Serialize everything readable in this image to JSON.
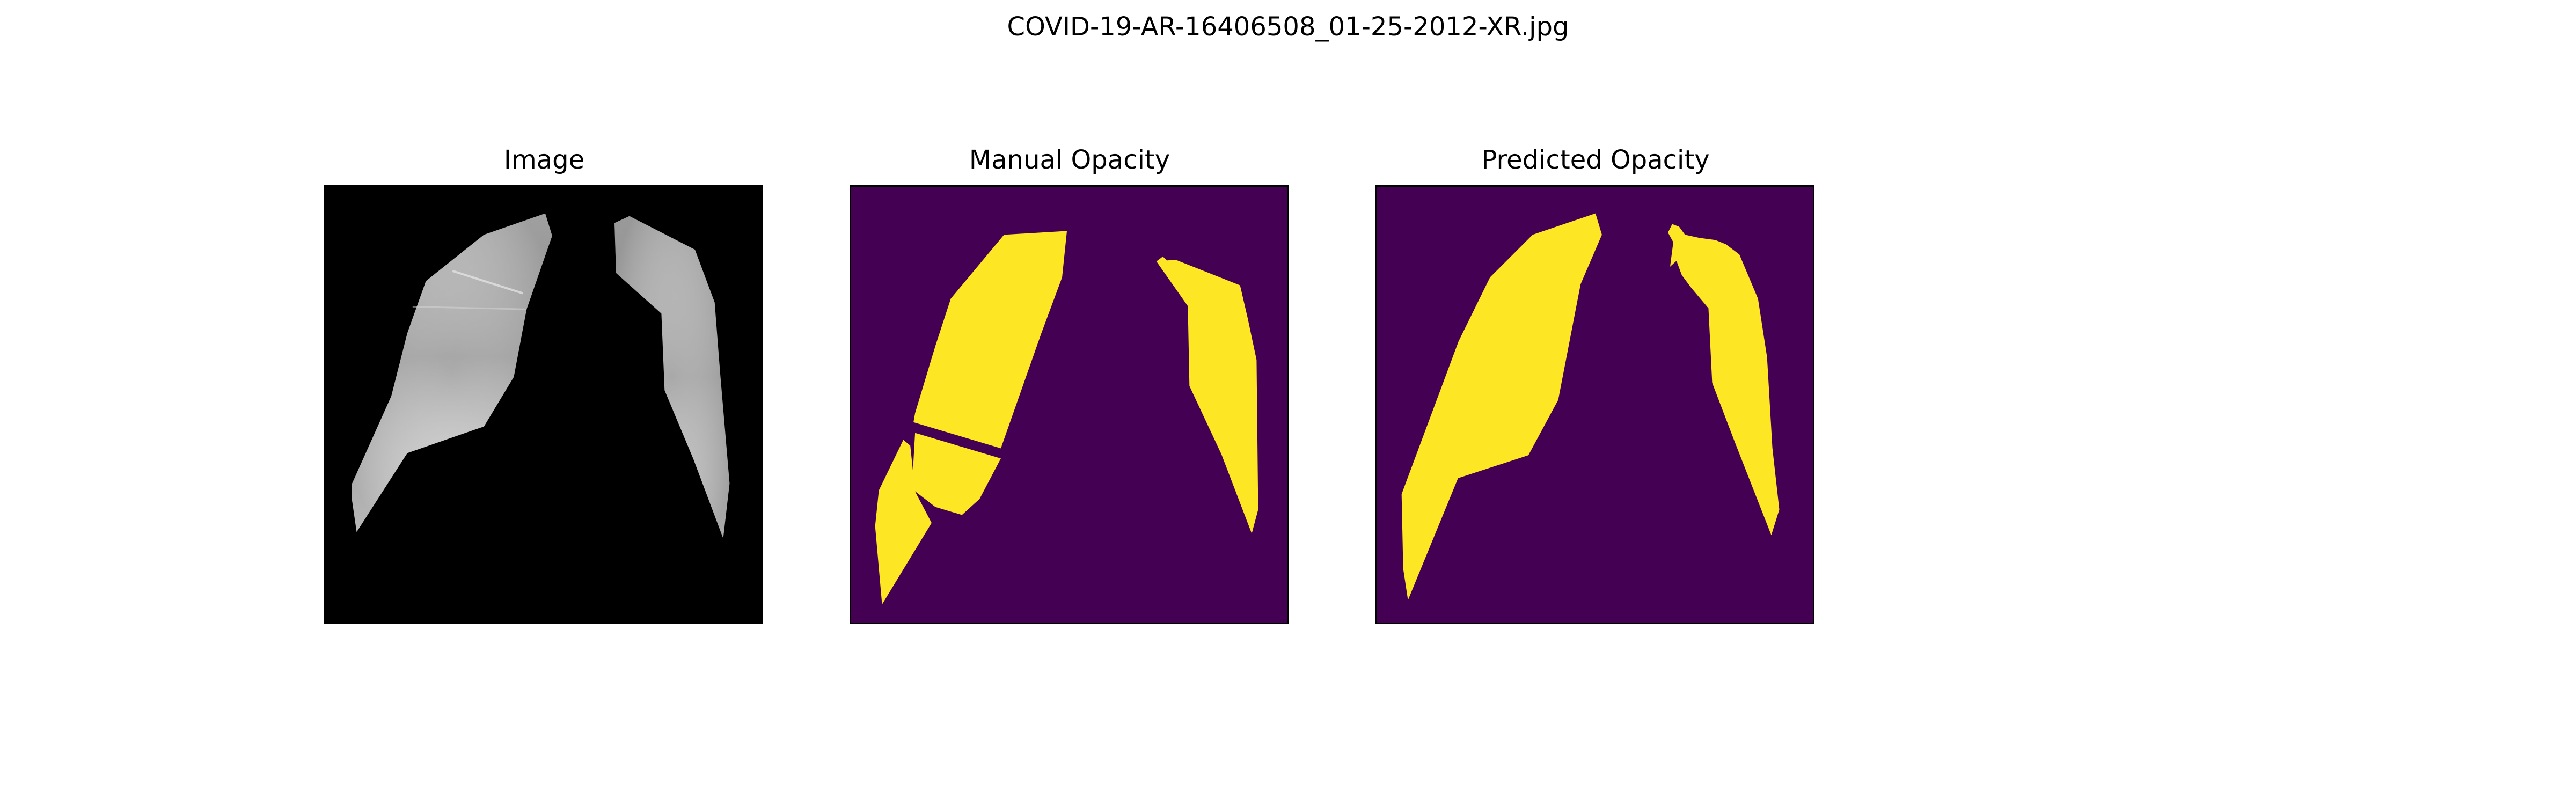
{
  "figure": {
    "title": "COVID-19-AR-16406508_01-25-2012-XR.jpg",
    "panels": [
      {
        "title": "Image"
      },
      {
        "title": "Manual Opacity"
      },
      {
        "title": "Predicted Opacity"
      }
    ]
  },
  "colors": {
    "background": "#ffffff",
    "image_background": "#000000",
    "mask_background": "#440154",
    "mask_foreground": "#fde725",
    "axes_border": "#000000"
  }
}
